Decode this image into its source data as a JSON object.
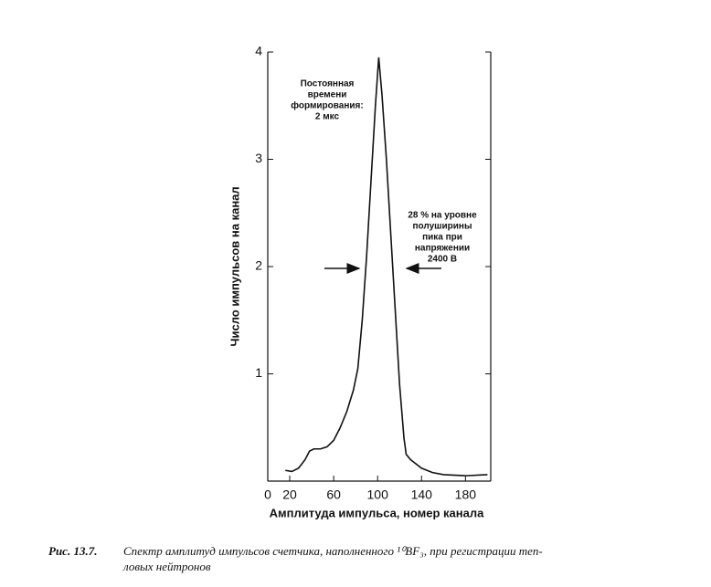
{
  "chart_data": {
    "type": "line",
    "color": "#111111",
    "x": [
      16,
      22,
      28,
      34,
      38,
      42,
      48,
      54,
      60,
      66,
      72,
      78,
      82,
      86,
      90,
      94,
      98,
      101,
      104,
      108,
      112,
      116,
      120,
      124,
      126,
      130,
      140,
      150,
      160,
      180,
      200
    ],
    "values": [
      0.1,
      0.09,
      0.12,
      0.2,
      0.28,
      0.3,
      0.3,
      0.32,
      0.38,
      0.5,
      0.65,
      0.85,
      1.05,
      1.5,
      2.1,
      2.8,
      3.5,
      3.95,
      3.6,
      3.0,
      2.3,
      1.6,
      0.9,
      0.4,
      0.25,
      0.2,
      0.12,
      0.08,
      0.06,
      0.05,
      0.06
    ],
    "xlim": [
      0,
      203
    ],
    "ylim": [
      0,
      4
    ],
    "xticks": [
      0,
      20,
      60,
      100,
      140,
      180
    ],
    "yticks": [
      1,
      2,
      3,
      4
    ],
    "xlabel": "Амплитуда импульса, номер канала",
    "ylabel": "Число импульсов на канал",
    "annotations": [
      {
        "lines": [
          "Постоянная",
          "времени",
          "формирования:",
          "2 мкс"
        ]
      },
      {
        "lines": [
          "28 % на уровне",
          "полуширины",
          "пика при",
          "напряжении",
          "2400 В"
        ]
      }
    ]
  },
  "caption": {
    "label": "Рис. 13.7.",
    "lines": [
      "Спектр амплитуд импульсов счетчика, наполненного ¹⁰BF₃, при регистрации теп-",
      "ловых нейтронов"
    ]
  }
}
